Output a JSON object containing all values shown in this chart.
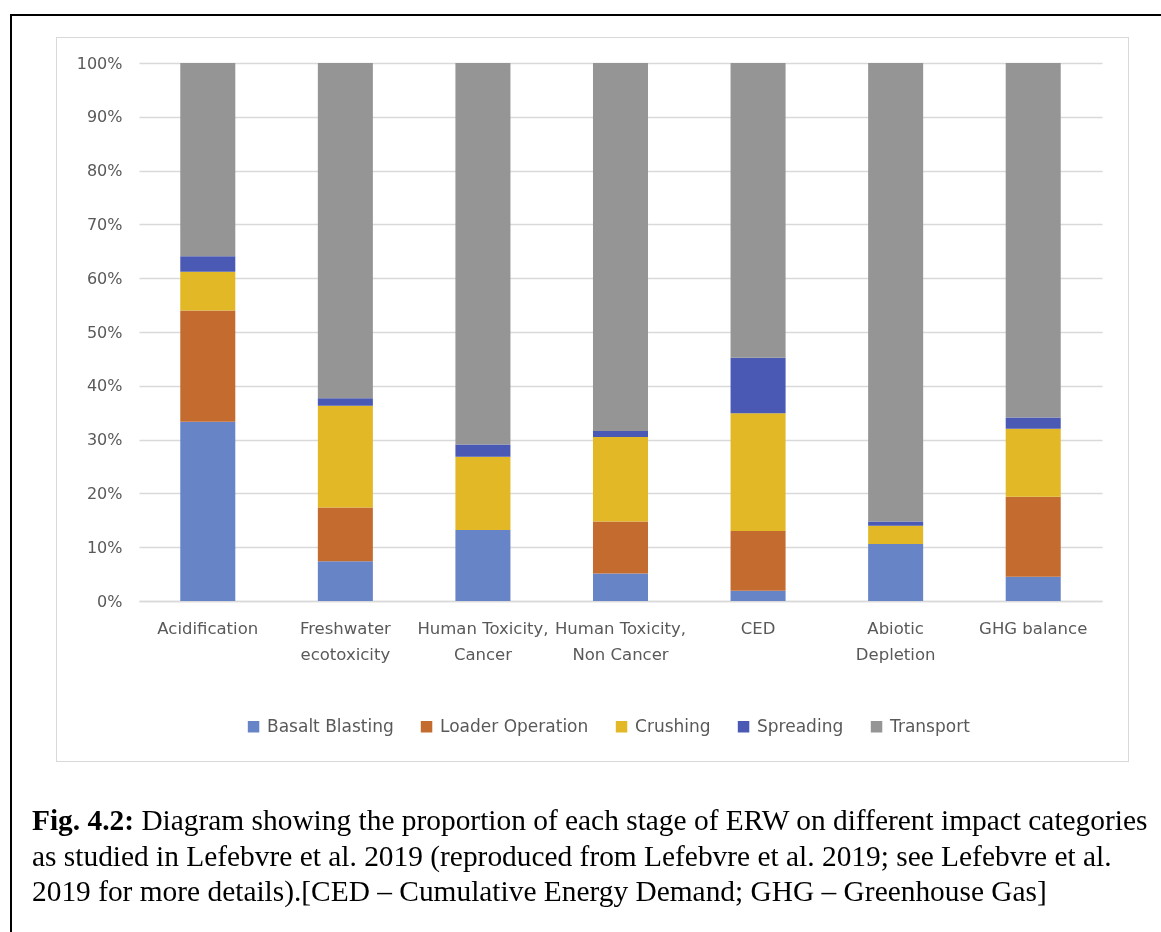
{
  "chart_data": {
    "type": "bar",
    "stacked": true,
    "categories": [
      "Acidification",
      "Freshwater ecotoxicity",
      "Human Toxicity, Cancer",
      "Human Toxicity, Non Cancer",
      "CED",
      "Abiotic Depletion",
      "GHG balance"
    ],
    "series": [
      {
        "name": "Basalt Blasting",
        "color": "#6784c6",
        "values": [
          33.3,
          7.4,
          13.2,
          5.1,
          1.9,
          10.6,
          4.5
        ]
      },
      {
        "name": "Loader Operation",
        "color": "#c46c30",
        "values": [
          20.7,
          10.0,
          0,
          9.7,
          11.1,
          0,
          14.9
        ]
      },
      {
        "name": "Crushing",
        "color": "#e2b826",
        "values": [
          7.2,
          18.9,
          13.6,
          15.7,
          21.9,
          3.4,
          12.6
        ]
      },
      {
        "name": "Spreading",
        "color": "#4959b4",
        "values": [
          2.9,
          1.4,
          2.3,
          1.1,
          10.3,
          0.8,
          2.1
        ]
      },
      {
        "name": "Transport",
        "color": "#959595",
        "values": [
          35.9,
          62.3,
          70.9,
          68.4,
          54.8,
          85.2,
          65.9
        ]
      }
    ],
    "ylim": [
      0,
      100
    ],
    "yticks": [
      {
        "value": 0,
        "label": "0%"
      },
      {
        "value": 10,
        "label": "10%"
      },
      {
        "value": 20,
        "label": "20%"
      },
      {
        "value": 30,
        "label": "30%"
      },
      {
        "value": 40,
        "label": "40%"
      },
      {
        "value": 50,
        "label": "50%"
      },
      {
        "value": 60,
        "label": "60%"
      },
      {
        "value": 70,
        "label": "70%"
      },
      {
        "value": 80,
        "label": "80%"
      },
      {
        "value": 90,
        "label": "90%"
      },
      {
        "value": 100,
        "label": "100%"
      }
    ],
    "grid": "y",
    "legend": "bottom",
    "annotations": [
      "Fig. 4.2: Diagram showing the proportion of each stage of ERW on different impact categories as studied in Lefebvre et al. 2019 (reproduced from Lefebvre et al. 2019; see Lefebvre et al. 2019 for more details).[CED – Cumulative Energy Demand; GHG – Greenhouse Gas]"
    ]
  }
}
